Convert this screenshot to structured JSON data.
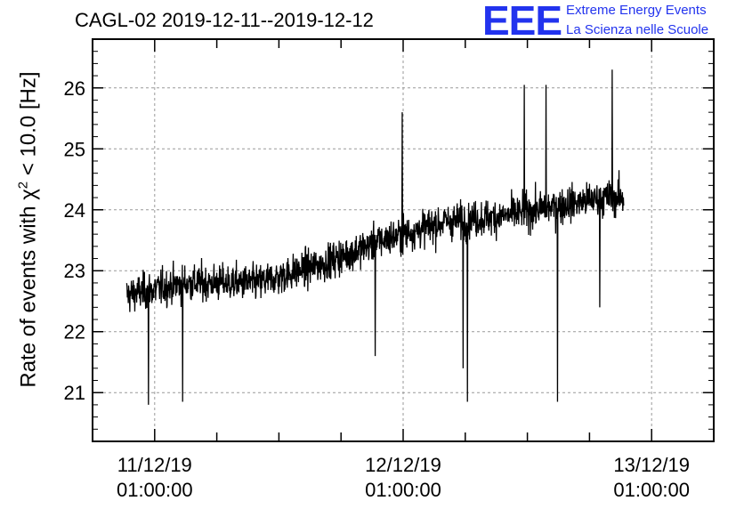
{
  "title": "CAGL-02 2019-12-11--2019-12-12",
  "logo": {
    "letters": "EEE",
    "line1": "Extreme Energy Events",
    "line2": "La Scienza nelle Scuole",
    "color": "#2233ee"
  },
  "chart_data": {
    "type": "line",
    "ylabel_prefix": "Rate of events with χ",
    "ylabel_sup": "2",
    "ylabel_suffix": " < 10.0 [Hz]",
    "xlabel": "",
    "ylim": [
      20.2,
      26.8
    ],
    "xlim_hours": [
      -6,
      54
    ],
    "y_ticks": [
      21,
      22,
      23,
      24,
      25,
      26
    ],
    "x_ticks": [
      {
        "hour": 0,
        "date": "11/12/19",
        "time": "01:00:00"
      },
      {
        "hour": 24,
        "date": "12/12/19",
        "time": "01:00:00"
      },
      {
        "hour": 48,
        "date": "13/12/19",
        "time": "01:00:00"
      }
    ],
    "grid": true,
    "series": [
      {
        "color": "#000000",
        "trend_hours": [
          -2.7,
          3,
          10,
          16,
          22,
          28,
          34,
          40,
          44,
          45.3
        ],
        "trend_rate": [
          22.6,
          22.8,
          22.8,
          23.1,
          23.5,
          23.8,
          23.9,
          24.1,
          24.2,
          24.2
        ],
        "spread": 0.38,
        "time_range_hours": [
          -2.7,
          45.3
        ],
        "spikes": [
          {
            "hour": -0.6,
            "rate": 20.8
          },
          {
            "hour": 2.7,
            "rate": 20.85
          },
          {
            "hour": 21.3,
            "rate": 21.6
          },
          {
            "hour": 29.8,
            "rate": 21.4
          },
          {
            "hour": 30.2,
            "rate": 20.85
          },
          {
            "hour": 38.9,
            "rate": 20.85
          },
          {
            "hour": 43.0,
            "rate": 22.4
          },
          {
            "hour": 35.7,
            "rate": 26.05
          },
          {
            "hour": 37.8,
            "rate": 26.05
          },
          {
            "hour": 44.2,
            "rate": 26.3
          },
          {
            "hour": 23.9,
            "rate": 25.6
          }
        ]
      }
    ]
  }
}
